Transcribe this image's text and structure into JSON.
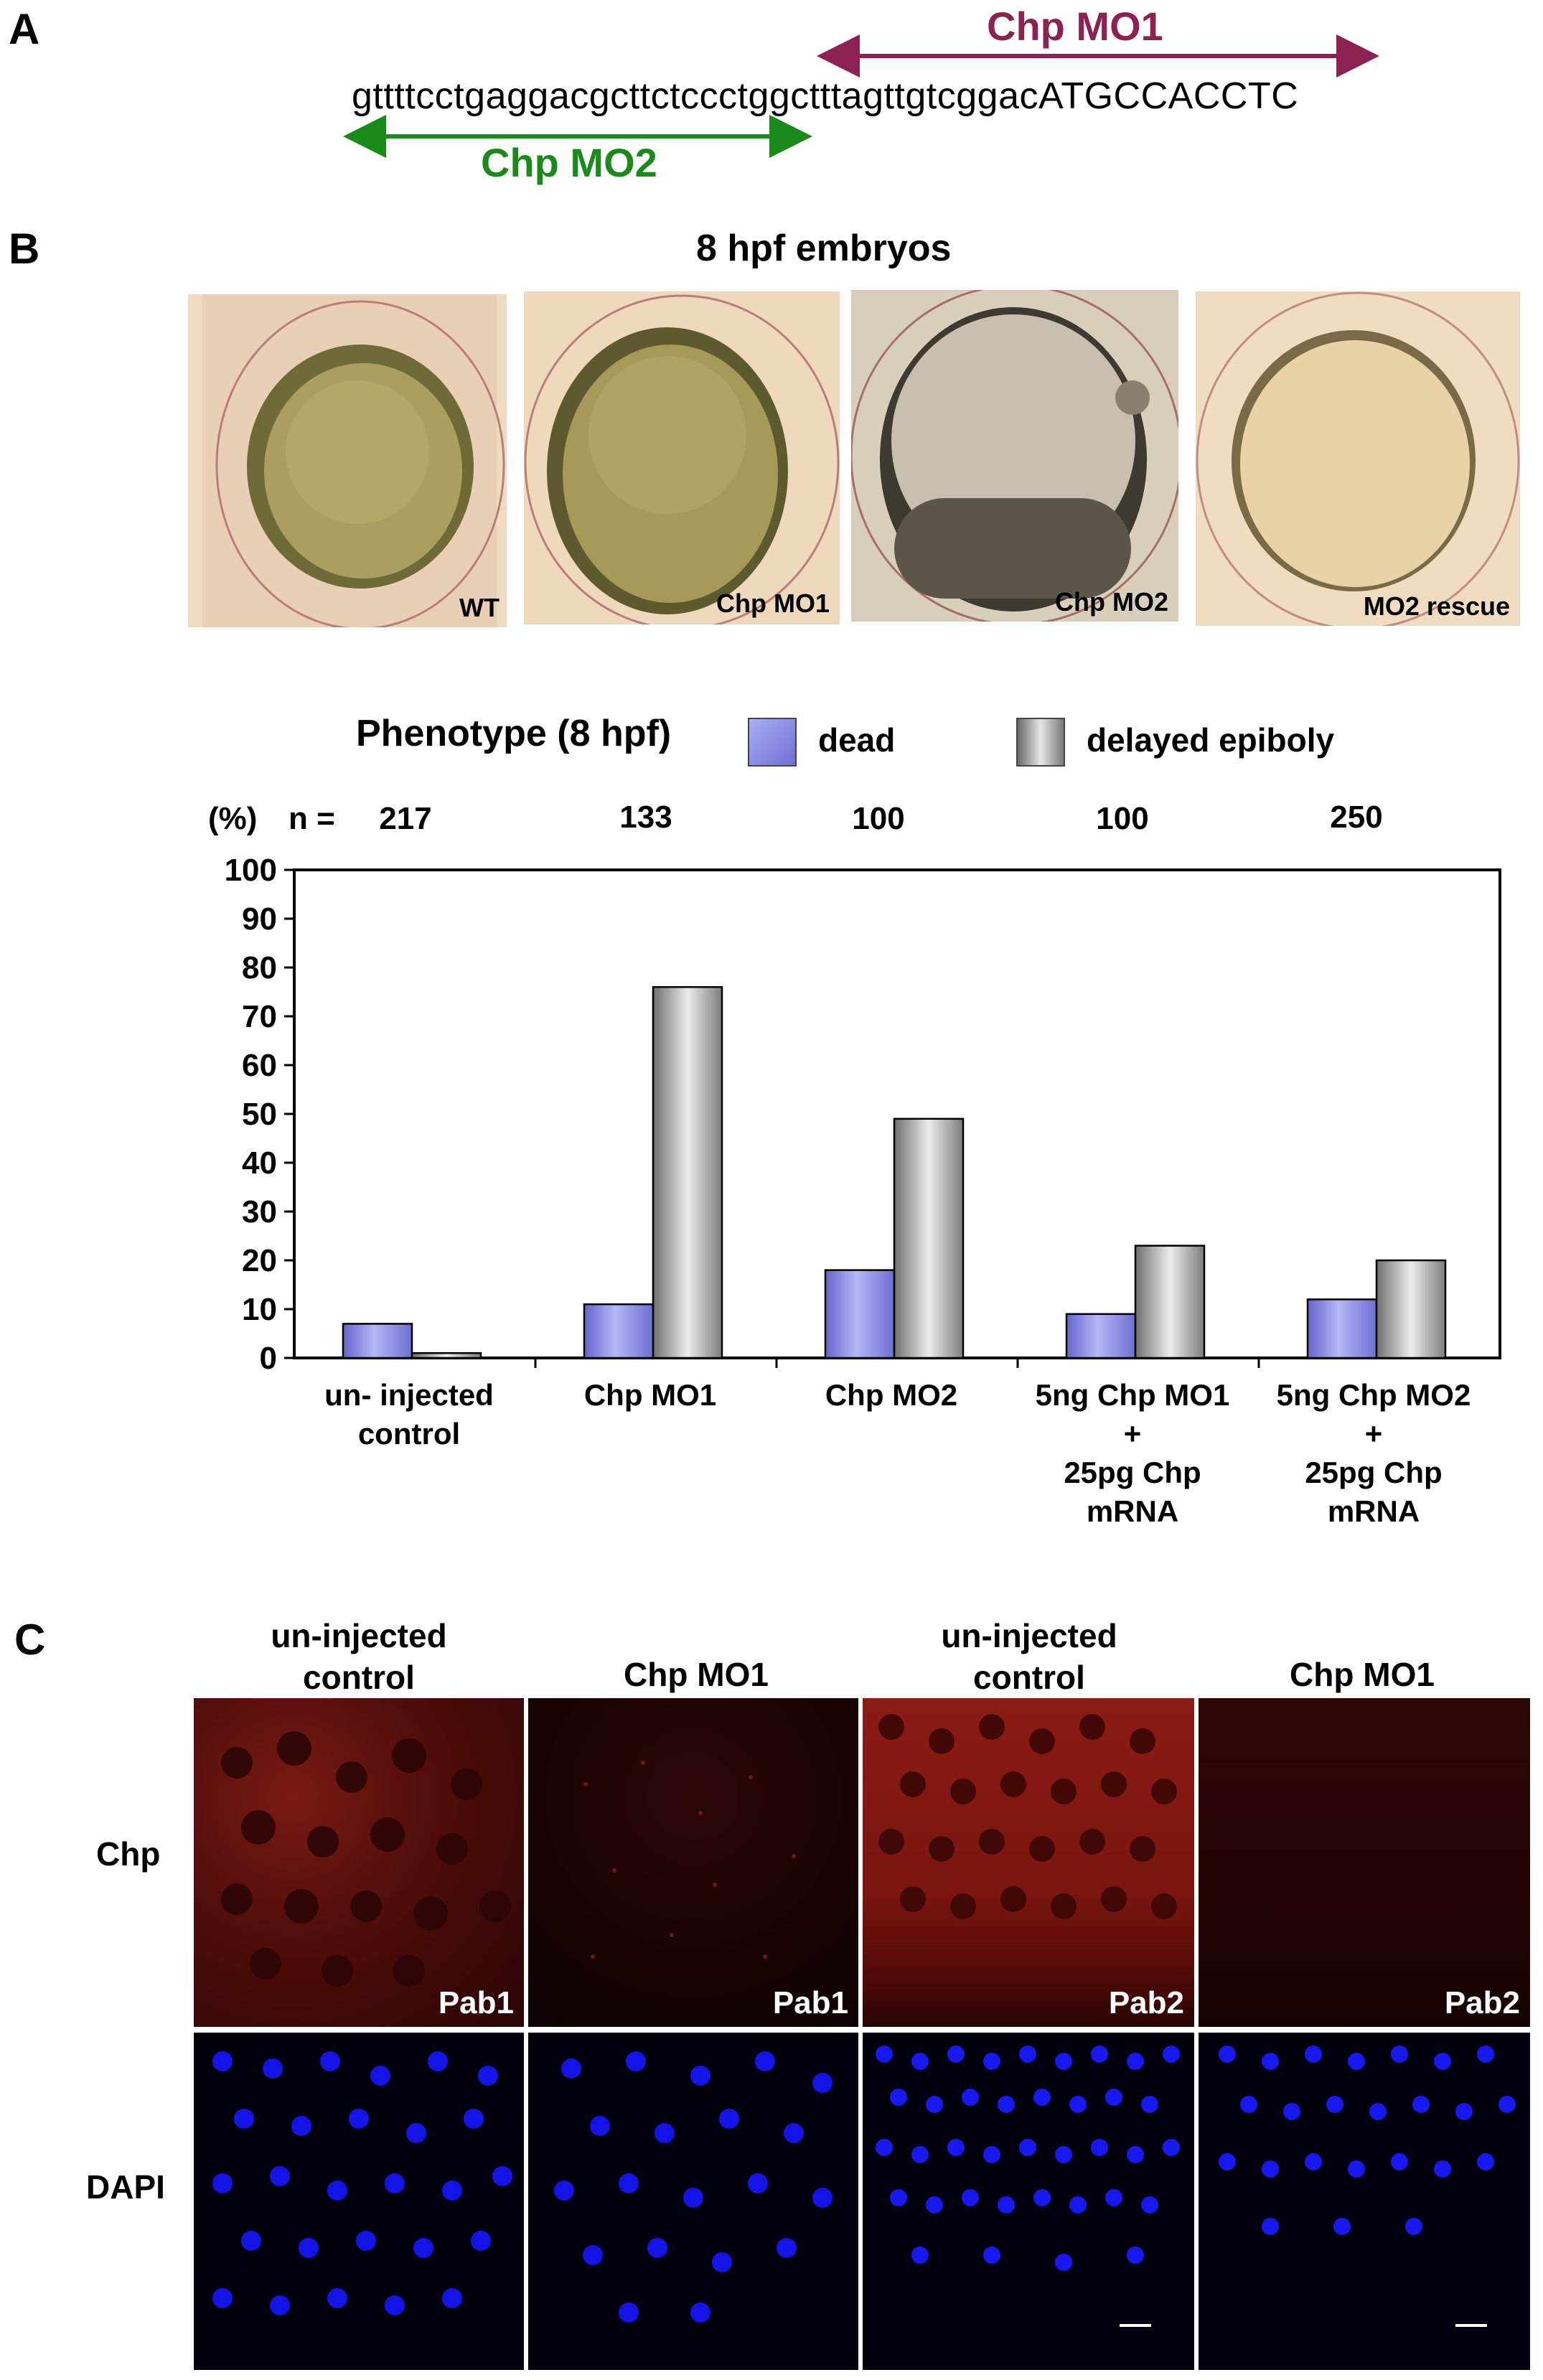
{
  "panel_a": {
    "letter": "A",
    "sequence": "gttttcctgaggacgcttctccctggctttagttgtcggacATGCCACCTC",
    "mo1_label": "Chp MO1",
    "mo2_label": "Chp MO2",
    "colors": {
      "mo1": "#8b2252",
      "mo2": "#1a8a1a"
    }
  },
  "panel_b": {
    "letter": "B",
    "title": "8 hpf embryos",
    "photos": [
      {
        "label": "WT"
      },
      {
        "label": "Chp MO1"
      },
      {
        "label": "Chp MO2"
      },
      {
        "label": "MO2 rescue"
      }
    ],
    "legend": {
      "title": "Phenotype (8 hpf)",
      "dead": "dead",
      "delayed": "delayed epiboly"
    },
    "n_prefix_pct": "(%)",
    "n_prefix": "n =",
    "n_values": [
      "217",
      "133",
      "100",
      "100",
      "250"
    ]
  },
  "chart_data": {
    "type": "bar",
    "categories": [
      [
        "un- injected",
        "control"
      ],
      [
        "Chp MO1"
      ],
      [
        "Chp MO2"
      ],
      [
        "5ng Chp MO1",
        "+",
        "25pg Chp",
        "mRNA"
      ],
      [
        "5ng Chp MO2",
        "+",
        "25pg Chp",
        "mRNA"
      ]
    ],
    "series": [
      {
        "name": "dead",
        "values": [
          7,
          11,
          18,
          9,
          12
        ],
        "color": "#8a8ae8"
      },
      {
        "name": "delayed epiboly",
        "values": [
          1,
          76,
          49,
          23,
          20
        ],
        "color": "#a8a8a8"
      }
    ],
    "ylim": [
      0,
      100
    ],
    "yticks": [
      "0",
      "10",
      "20",
      "30",
      "40",
      "50",
      "60",
      "70",
      "80",
      "90",
      "100"
    ],
    "grid": false,
    "legend_position": "top"
  },
  "panel_c": {
    "letter": "C",
    "col_headers": [
      [
        "un-injected",
        "control"
      ],
      [
        "Chp MO1"
      ],
      [
        "un-injected",
        "control"
      ],
      [
        "Chp MO1"
      ]
    ],
    "row_labels": [
      "Chp",
      "DAPI"
    ],
    "antibody_tags": [
      "Pab1",
      "Pab1",
      "Pab2",
      "Pab2"
    ]
  }
}
